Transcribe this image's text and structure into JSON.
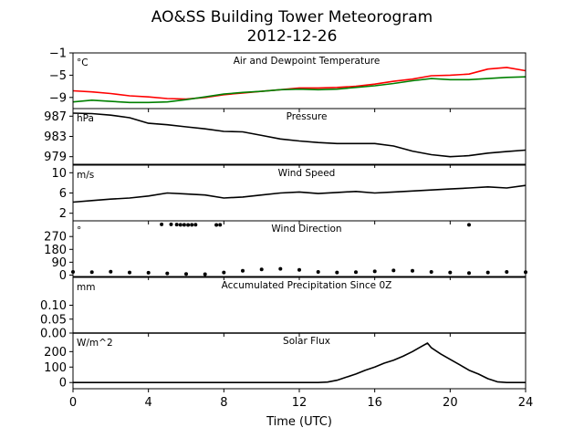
{
  "figure": {
    "title_line1": "AO&SS Building Tower Meteorogram",
    "title_line2": "2012-12-26",
    "xlabel": "Time (UTC)"
  },
  "colors": {
    "temperature": "#ff0000",
    "dewpoint": "#008000",
    "default_line": "#000000"
  },
  "chart_data": [
    {
      "type": "line",
      "title": "Air and Dewpoint Temperature",
      "unit": "°C",
      "xlim": [
        0,
        24
      ],
      "ylim": [
        -11,
        -1
      ],
      "yticks": [
        -1,
        -5,
        -9
      ],
      "series": [
        {
          "color": "temperature",
          "x": [
            0,
            1,
            2,
            3,
            4,
            5,
            6,
            7,
            8,
            9,
            10,
            11,
            12,
            13,
            14,
            15,
            16,
            17,
            18,
            19,
            20,
            21,
            22,
            23,
            24
          ],
          "y": [
            -7.8,
            -8.0,
            -8.3,
            -8.7,
            -8.9,
            -9.2,
            -9.3,
            -9.0,
            -8.5,
            -8.2,
            -7.9,
            -7.6,
            -7.3,
            -7.3,
            -7.2,
            -7.0,
            -6.6,
            -6.1,
            -5.7,
            -5.1,
            -5.0,
            -4.8,
            -3.9,
            -3.6,
            -4.2
          ]
        },
        {
          "color": "dewpoint",
          "x": [
            0,
            1,
            2,
            3,
            4,
            5,
            6,
            7,
            8,
            9,
            10,
            11,
            12,
            13,
            14,
            15,
            16,
            17,
            18,
            19,
            20,
            21,
            22,
            23,
            24
          ],
          "y": [
            -9.8,
            -9.5,
            -9.7,
            -9.9,
            -9.9,
            -9.8,
            -9.4,
            -8.9,
            -8.4,
            -8.1,
            -7.9,
            -7.6,
            -7.5,
            -7.6,
            -7.5,
            -7.2,
            -6.9,
            -6.5,
            -6.0,
            -5.6,
            -5.8,
            -5.8,
            -5.6,
            -5.4,
            -5.3
          ]
        }
      ]
    },
    {
      "type": "line",
      "title": "Pressure",
      "unit": "hPa",
      "xlim": [
        0,
        24
      ],
      "ylim": [
        977.5,
        988.5
      ],
      "yticks": [
        987,
        983,
        979
      ],
      "series": [
        {
          "color": "default_line",
          "x": [
            0,
            1,
            2,
            3,
            4,
            5,
            6,
            7,
            8,
            9,
            10,
            11,
            12,
            13,
            14,
            15,
            16,
            17,
            18,
            19,
            20,
            21,
            22,
            23,
            24
          ],
          "y": [
            987.6,
            987.5,
            987.2,
            986.7,
            985.6,
            985.3,
            984.9,
            984.5,
            984.0,
            983.9,
            983.2,
            982.5,
            982.1,
            981.8,
            981.6,
            981.6,
            981.6,
            981.1,
            980.1,
            979.4,
            979.0,
            979.2,
            979.7,
            980.0,
            980.3
          ]
        }
      ]
    },
    {
      "type": "line",
      "title": "Wind Speed",
      "unit": "m/s",
      "xlim": [
        0,
        24
      ],
      "ylim": [
        0.5,
        11.5
      ],
      "yticks": [
        10,
        6,
        2
      ],
      "series": [
        {
          "color": "default_line",
          "x": [
            0,
            1,
            2,
            3,
            4,
            5,
            6,
            7,
            8,
            9,
            10,
            11,
            12,
            13,
            14,
            15,
            16,
            17,
            18,
            19,
            20,
            21,
            22,
            23,
            24
          ],
          "y": [
            4.2,
            4.5,
            4.8,
            5.0,
            5.4,
            6.0,
            5.8,
            5.6,
            5.0,
            5.2,
            5.6,
            6.0,
            6.2,
            5.9,
            6.1,
            6.3,
            6.0,
            6.2,
            6.4,
            6.6,
            6.8,
            7.0,
            7.2,
            7.0,
            7.5
          ]
        }
      ]
    },
    {
      "type": "scatter",
      "title": "Wind Direction",
      "unit": "°",
      "xlim": [
        0,
        24
      ],
      "ylim": [
        -10,
        380
      ],
      "yticks": [
        270,
        180,
        90,
        0
      ],
      "series": [
        {
          "color": "default_line",
          "x": [
            0,
            1,
            2,
            3,
            4,
            5,
            6,
            7,
            8,
            9,
            10,
            11,
            12,
            13,
            14,
            15,
            16,
            17,
            18,
            19,
            20,
            21,
            22,
            23,
            24
          ],
          "y": [
            22,
            20,
            24,
            18,
            16,
            12,
            8,
            6,
            18,
            30,
            40,
            44,
            36,
            22,
            18,
            20,
            26,
            32,
            30,
            22,
            18,
            14,
            18,
            22,
            20
          ]
        },
        {
          "color": "default_line",
          "x": [
            4.7,
            5.2,
            5.5,
            5.7,
            5.9,
            6.1,
            6.3,
            6.5,
            7.6,
            7.8,
            21.0
          ],
          "y": [
            355,
            355,
            354,
            352,
            352,
            351,
            352,
            353,
            351,
            352,
            352
          ]
        }
      ]
    },
    {
      "type": "line",
      "title": "Accumulated Precipitation Since 0Z",
      "unit": "mm",
      "xlim": [
        0,
        24
      ],
      "ylim": [
        0,
        0.2
      ],
      "yticks": [
        0.1,
        0.05,
        0.0
      ],
      "ytick_labels": [
        "0.10",
        "0.05",
        "0.00"
      ],
      "series": [
        {
          "color": "default_line",
          "x": [
            0,
            24
          ],
          "y": [
            0,
            0
          ]
        }
      ]
    },
    {
      "type": "line",
      "title": "Solar Flux",
      "unit": "W/m^2",
      "xlim": [
        0,
        24
      ],
      "ylim": [
        -40,
        320
      ],
      "yticks": [
        200,
        100,
        0
      ],
      "xticks": [
        0,
        4,
        8,
        12,
        16,
        20,
        24
      ],
      "series": [
        {
          "color": "default_line",
          "x": [
            0,
            13,
            13.5,
            14,
            14.5,
            15,
            15.5,
            16,
            16.5,
            17,
            17.5,
            18,
            18.5,
            18.8,
            19,
            19.5,
            20,
            20.5,
            21,
            21.5,
            22,
            22.5,
            23,
            24
          ],
          "y": [
            0,
            0,
            3,
            15,
            35,
            55,
            80,
            100,
            125,
            145,
            170,
            200,
            235,
            255,
            225,
            185,
            150,
            115,
            80,
            55,
            25,
            5,
            0,
            0
          ]
        }
      ]
    }
  ]
}
